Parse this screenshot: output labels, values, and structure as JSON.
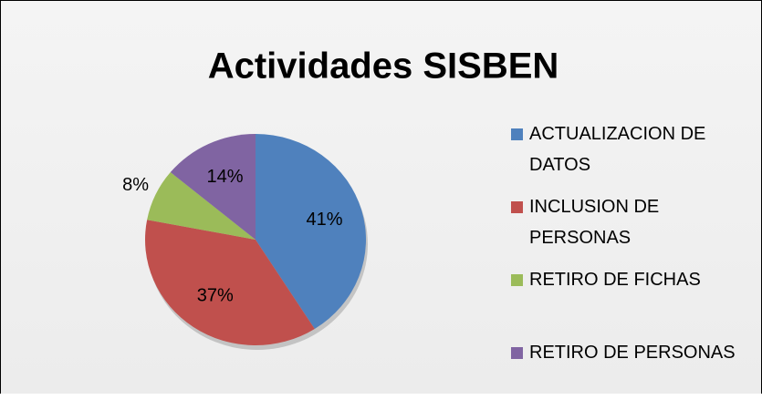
{
  "chart_data": {
    "type": "pie",
    "title": "Actividades SISBEN",
    "categories": [
      "ACTUALIZACION DE DATOS",
      "INCLUSION DE PERSONAS",
      "RETIRO DE FICHAS",
      "RETIRO DE PERSONAS"
    ],
    "values": [
      41,
      37,
      8,
      14
    ],
    "value_labels": [
      "41%",
      "37%",
      "8%",
      "14%"
    ],
    "colors": [
      "#4f81bd",
      "#c0504d",
      "#9bbb59",
      "#8064a2"
    ],
    "legend": "right"
  }
}
